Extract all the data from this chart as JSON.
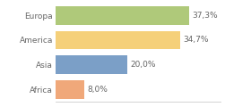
{
  "categories": [
    "Africa",
    "Asia",
    "America",
    "Europa"
  ],
  "values": [
    8.0,
    20.0,
    34.7,
    37.3
  ],
  "labels": [
    "8,0%",
    "20,0%",
    "34,7%",
    "37,3%"
  ],
  "colors": [
    "#f0a87a",
    "#7b9fc7",
    "#f5d07a",
    "#afc97a"
  ],
  "xlim": [
    0,
    46
  ],
  "background_color": "#ffffff",
  "bar_height": 0.75,
  "label_fontsize": 6.5,
  "tick_fontsize": 6.5
}
